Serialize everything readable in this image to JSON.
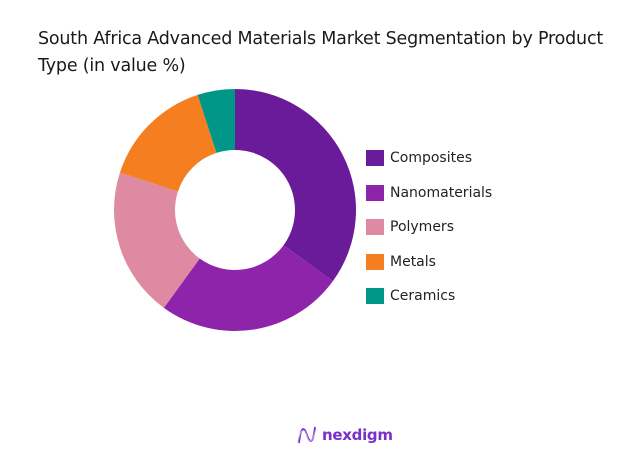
{
  "title": "South Africa Advanced Materials Market Segmentation by Product Type (in value %)",
  "chart_data": {
    "type": "pie",
    "subtype": "donut",
    "title": "South Africa Advanced Materials Market Segmentation by Product Type (in value %)",
    "categories": [
      "Composites",
      "Nanomaterials",
      "Polymers",
      "Metals",
      "Ceramics"
    ],
    "values": [
      35,
      25,
      20,
      15,
      5
    ],
    "colors": [
      "#6A1B9A",
      "#8E24AA",
      "#DE8AA2",
      "#F57F20",
      "#009688"
    ],
    "unit": "%",
    "legend_position": "right",
    "start_angle": "12 o'clock, clockwise"
  },
  "legend": {
    "items": [
      {
        "label": "Composites",
        "color": "#6A1B9A"
      },
      {
        "label": "Nanomaterials",
        "color": "#8E24AA"
      },
      {
        "label": "Polymers",
        "color": "#DE8AA2"
      },
      {
        "label": "Metals",
        "color": "#F57F20"
      },
      {
        "label": "Ceramics",
        "color": "#009688"
      }
    ]
  },
  "logo": {
    "text": "nexdigm",
    "color": "#7B2FC9"
  }
}
